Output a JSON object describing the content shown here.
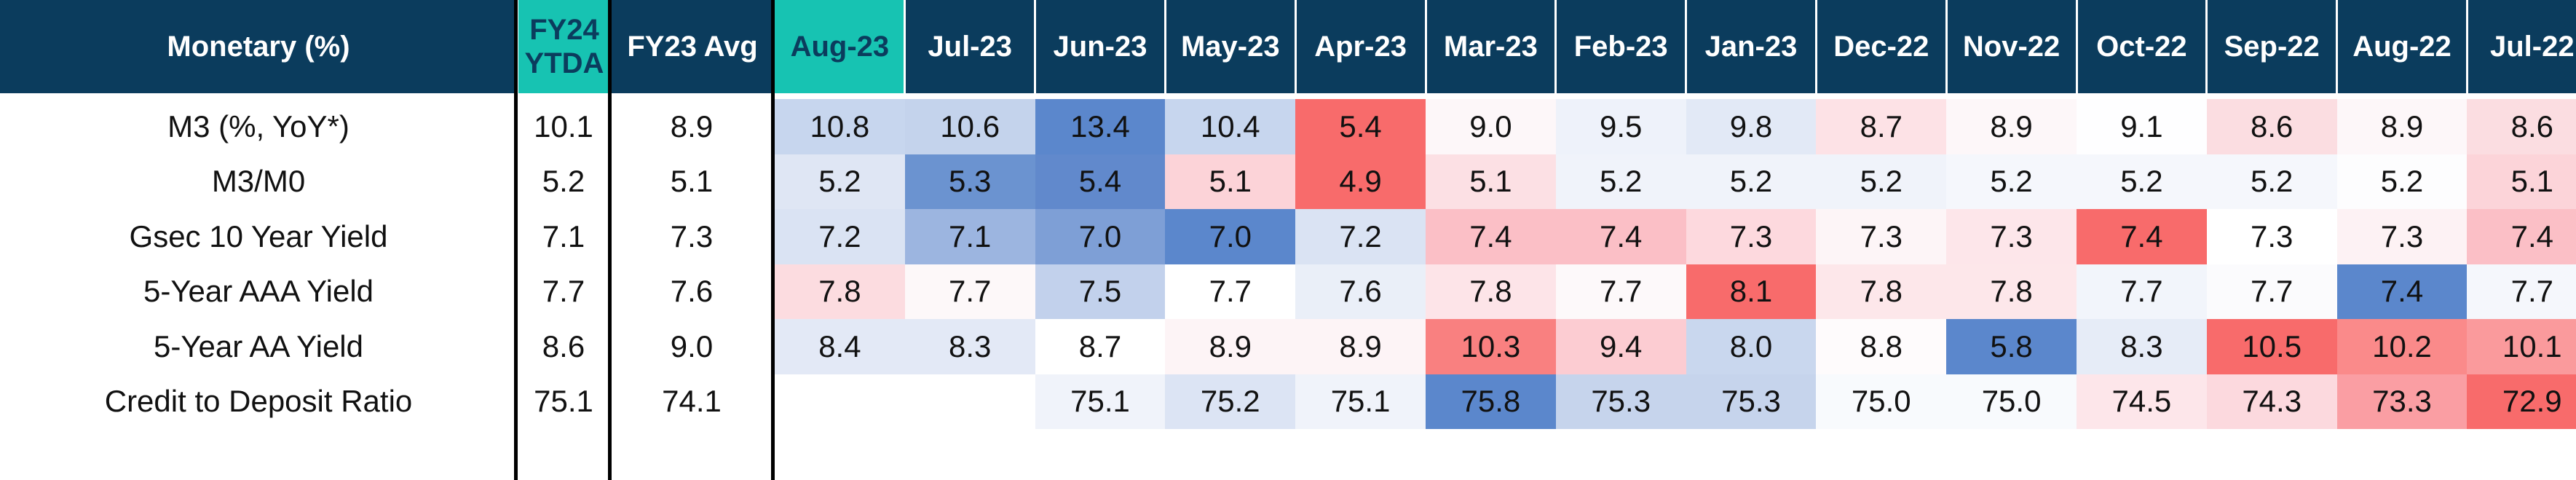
{
  "header": {
    "metric_label": "Monetary (%)",
    "ytd_label": "FY24\nYTDA",
    "avg_label": "FY23 Avg",
    "months": [
      "Aug-23",
      "Jul-23",
      "Jun-23",
      "May-23",
      "Apr-23",
      "Mar-23",
      "Feb-23",
      "Jan-23",
      "Dec-22",
      "Nov-22",
      "Oct-22",
      "Sep-22",
      "Aug-22",
      "Jul-22"
    ]
  },
  "rows": [
    {
      "label": "M3 (%, YoY*)",
      "ytd": "10.1",
      "avg": "8.9",
      "values": [
        "10.8",
        "10.6",
        "13.4",
        "10.4",
        "5.4",
        "9.0",
        "9.5",
        "9.8",
        "8.7",
        "8.9",
        "9.1",
        "8.6",
        "8.9",
        "8.6"
      ],
      "colors": [
        "#c7d6ee",
        "#c4d3ec",
        "#5b87cc",
        "#c7d6ee",
        "#f86b6b",
        "#fdf7f9",
        "#eef2fa",
        "#e2e9f6",
        "#fde2e6",
        "#fdf7f9",
        "#fefeff",
        "#fbdde1",
        "#fdf7f9",
        "#fbdde1"
      ]
    },
    {
      "label": "M3/M0",
      "ytd": "5.2",
      "avg": "5.1",
      "values": [
        "5.2",
        "5.3",
        "5.4",
        "5.1",
        "4.9",
        "5.1",
        "5.2",
        "5.2",
        "5.2",
        "5.2",
        "5.2",
        "5.2",
        "5.2",
        "5.1"
      ],
      "colors": [
        "#dfe6f4",
        "#6b93d0",
        "#6189cc",
        "#fcd3d8",
        "#f86b6b",
        "#fce0e4",
        "#f0f3fa",
        "#f0f3fa",
        "#f0f3fa",
        "#f5f7fc",
        "#f5f7fc",
        "#f5f7fc",
        "#fdfdfe",
        "#fcd4d9"
      ]
    },
    {
      "label": "Gsec 10 Year Yield",
      "ytd": "7.1",
      "avg": "7.3",
      "values": [
        "7.2",
        "7.1",
        "7.0",
        "7.0",
        "7.2",
        "7.4",
        "7.4",
        "7.3",
        "7.3",
        "7.3",
        "7.4",
        "7.3",
        "7.3",
        "7.4"
      ],
      "colors": [
        "#dae3f3",
        "#9cb5e0",
        "#7e9fd6",
        "#5b87cc",
        "#dae3f3",
        "#fbbfc6",
        "#fbbfc6",
        "#fdd9de",
        "#fdf5f7",
        "#fde6ea",
        "#f86b6b",
        "#ffffff",
        "#fdf2f4",
        "#fbbfc6"
      ]
    },
    {
      "label": "5-Year AAA Yield",
      "ytd": "7.7",
      "avg": "7.6",
      "values": [
        "7.8",
        "7.7",
        "7.5",
        "7.7",
        "7.6",
        "7.8",
        "7.7",
        "8.1",
        "7.8",
        "7.8",
        "7.7",
        "7.7",
        "7.4",
        "7.7"
      ],
      "colors": [
        "#fcdce0",
        "#fdf8f9",
        "#c2d1ec",
        "#ffffff",
        "#eaeff8",
        "#fde4e8",
        "#fdf9fa",
        "#f86b6b",
        "#fde7ea",
        "#fde7ea",
        "#f2f5fb",
        "#fbfbfd",
        "#5b87cc",
        "#f5f7fc"
      ]
    },
    {
      "label": "5-Year AA Yield",
      "ytd": "8.6",
      "avg": "9.0",
      "values": [
        "8.4",
        "8.3",
        "8.7",
        "8.9",
        "8.9",
        "10.3",
        "9.4",
        "8.0",
        "8.8",
        "5.8",
        "8.3",
        "10.5",
        "10.2",
        "10.1"
      ],
      "colors": [
        "#e3e9f6",
        "#e3e9f6",
        "#ffffff",
        "#fdf4f6",
        "#fdf4f6",
        "#f98080",
        "#fcccd2",
        "#c9d7ee",
        "#fefbfc",
        "#5b87cc",
        "#e6ecf7",
        "#f86b6b",
        "#fa8a8a",
        "#fa9a9c"
      ]
    },
    {
      "label": "Credit to Deposit Ratio",
      "ytd": "75.1",
      "avg": "74.1",
      "values": [
        "",
        "",
        "75.1",
        "75.2",
        "75.1",
        "75.8",
        "75.3",
        "75.3",
        "75.0",
        "75.0",
        "74.5",
        "74.3",
        "73.3",
        "72.9"
      ],
      "colors": [
        "#ffffff",
        "#ffffff",
        "#f0f3fa",
        "#dce4f4",
        "#f0f3fa",
        "#5b87cc",
        "#c6d4ec",
        "#c6d4ec",
        "#f8fafd",
        "#f8fafd",
        "#fde6ea",
        "#fcd9de",
        "#fa9ea3",
        "#f86b6b"
      ]
    }
  ]
}
